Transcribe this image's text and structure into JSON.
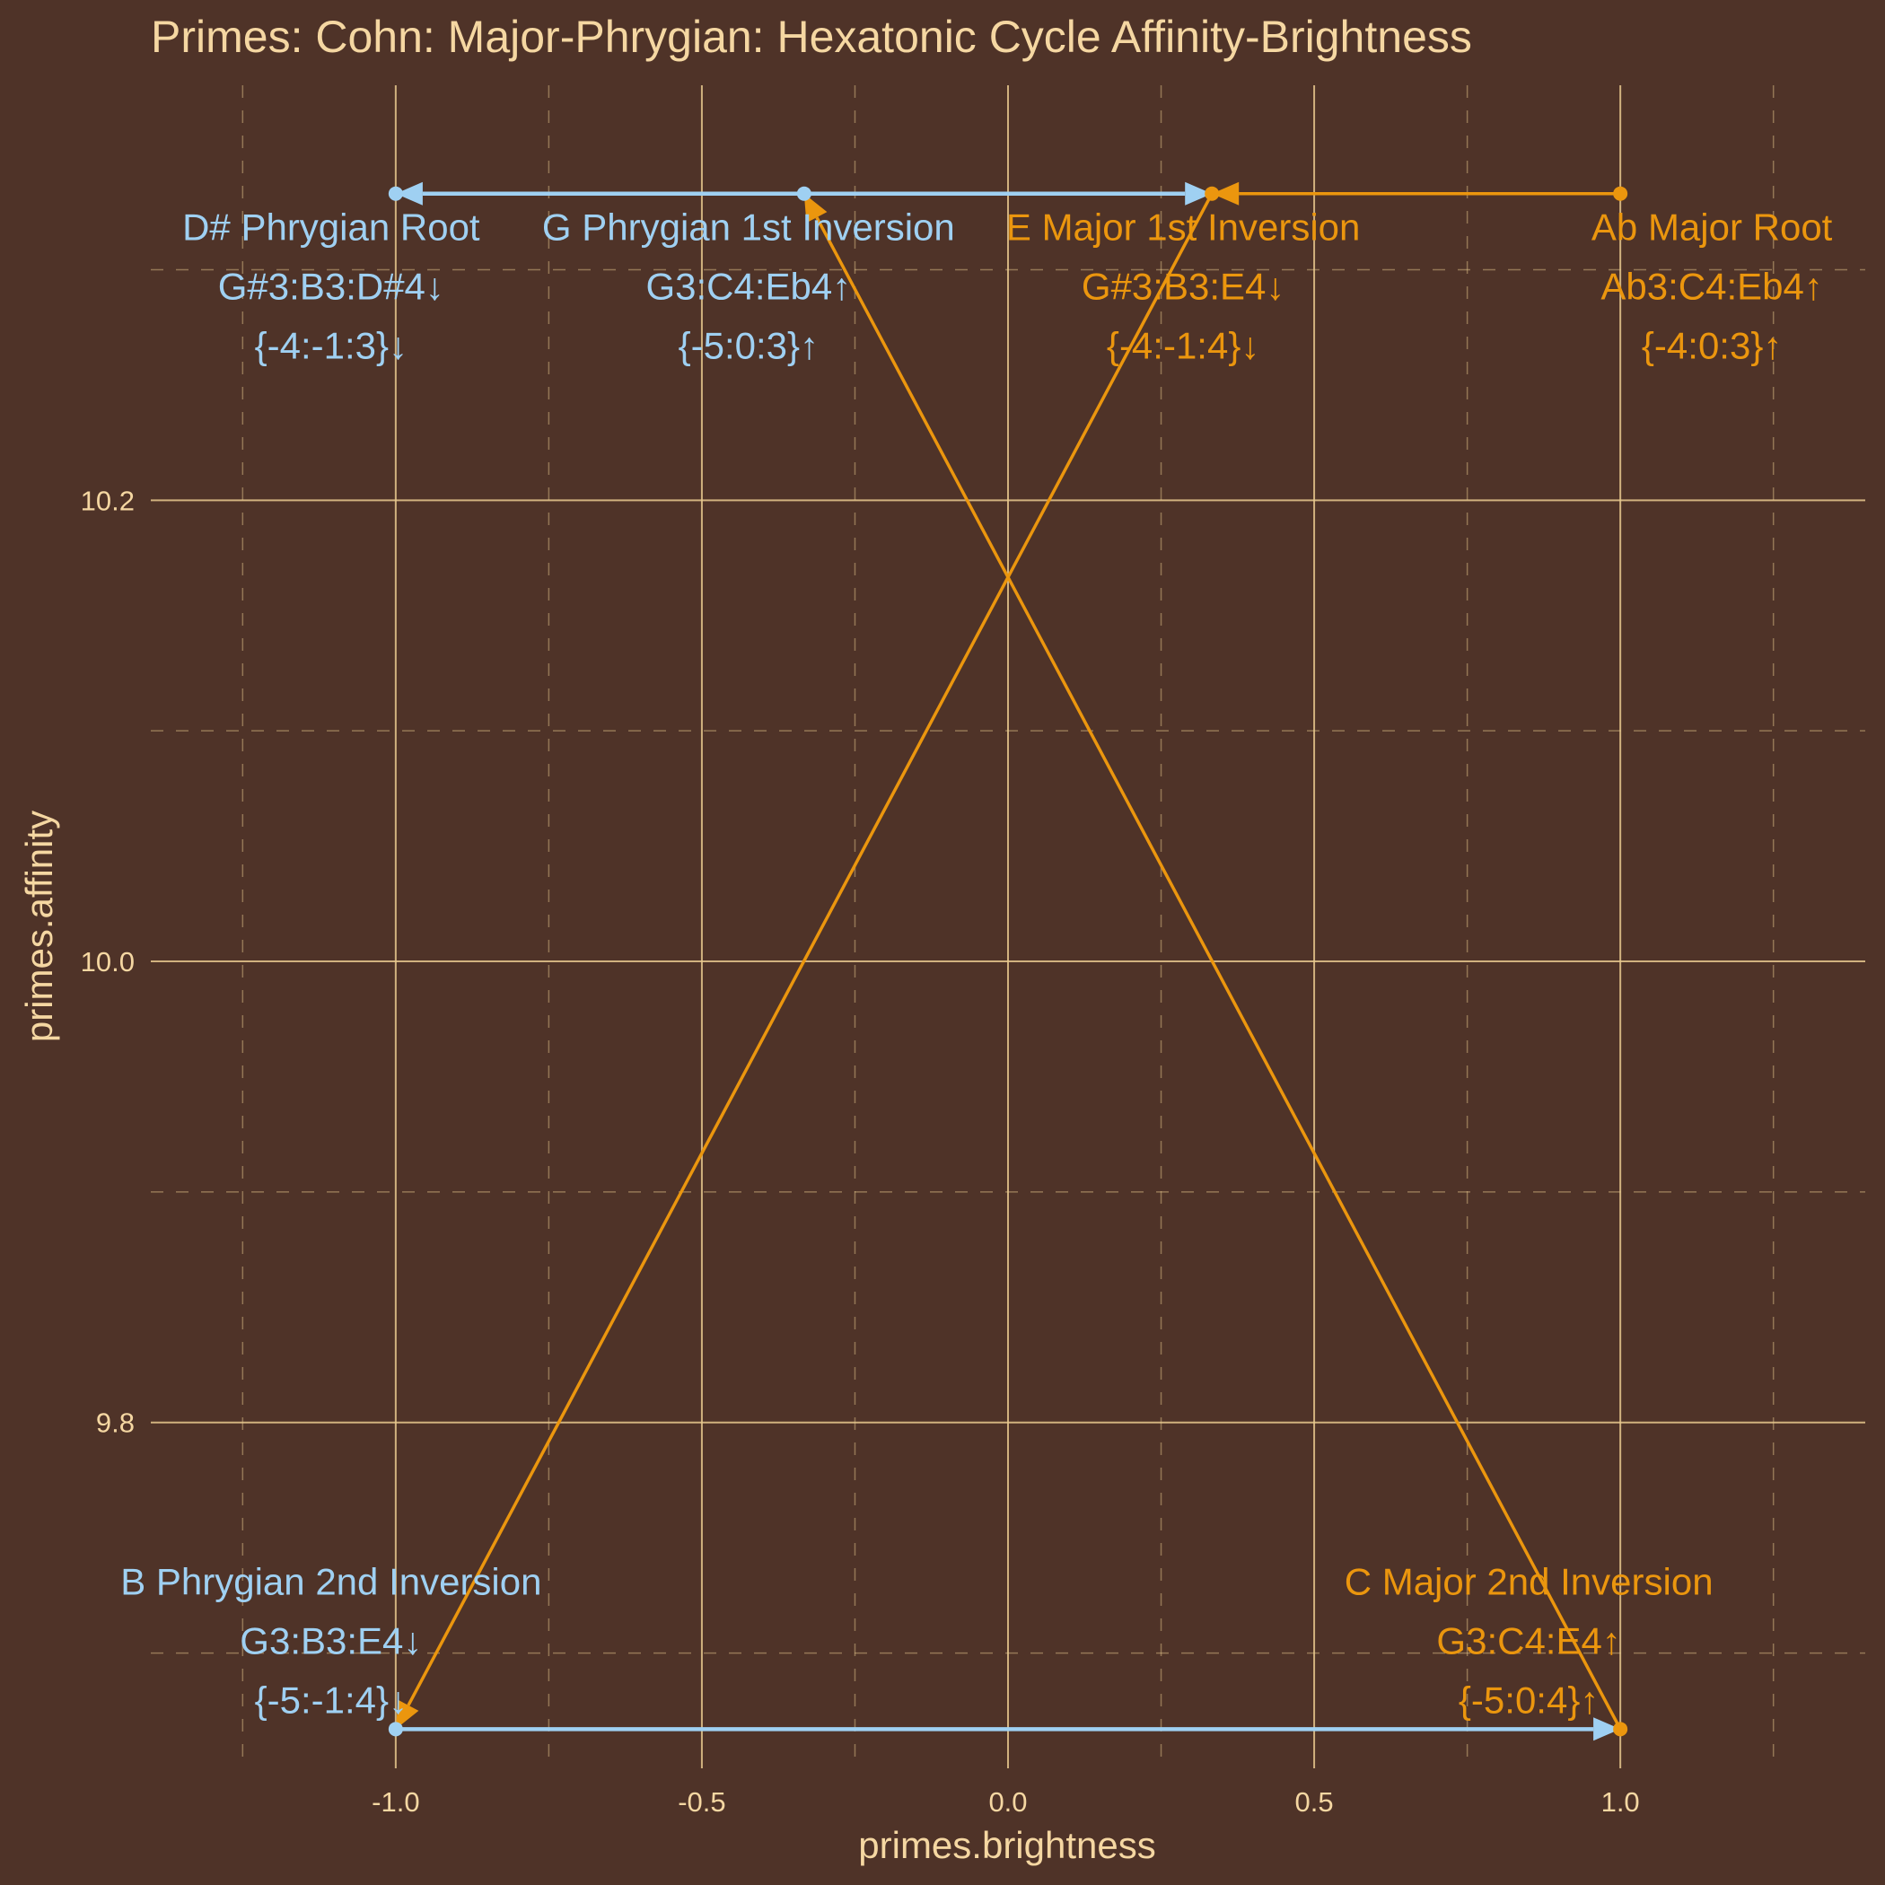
{
  "chart_data": {
    "type": "scatter",
    "title": "Primes: Cohn: Major-Phrygian: Hexatonic Cycle Affinity-Brightness",
    "xlabel": "primes.brightness",
    "ylabel": "primes.affinity",
    "xlim": [
      -1.4,
      1.4
    ],
    "ylim": [
      9.65,
      10.38
    ],
    "x_ticks": [
      -1.0,
      -0.5,
      0.0,
      0.5,
      1.0
    ],
    "x_tick_labels": [
      "-1.0",
      "-0.5",
      "0.0",
      "0.5",
      "1.0"
    ],
    "y_ticks": [
      9.8,
      10.0,
      10.2
    ],
    "y_tick_labels": [
      "9.8",
      "10.0",
      "10.2"
    ],
    "grid": true,
    "colors": {
      "background": "#4f3328",
      "text": "#f5d7a2",
      "grid": "#e8c98e",
      "phrygian": "#9fd0f2",
      "major": "#eb960e"
    },
    "points": [
      {
        "name": "D# Phrygian Root",
        "notes": "G#3:B3:D#4↓",
        "intervals": "{-4:-1:3}↓",
        "x": -1.0,
        "y": 10.333,
        "series": "phrygian",
        "label_pos": "above"
      },
      {
        "name": "G Phrygian 1st Inversion",
        "notes": "G3:C4:Eb4↑",
        "intervals": "{-5:0:3}↑",
        "x": -0.333,
        "y": 10.333,
        "series": "phrygian",
        "label_pos": "above"
      },
      {
        "name": "E Major 1st Inversion",
        "notes": "G#3:B3:E4↓",
        "intervals": "{-4:-1:4}↓",
        "x": 0.333,
        "y": 10.333,
        "series": "major",
        "label_pos": "above"
      },
      {
        "name": "Ab Major Root",
        "notes": "Ab3:C4:Eb4↑",
        "intervals": "{-4:0:3}↑",
        "x": 1.0,
        "y": 10.333,
        "series": "major",
        "label_pos": "above"
      },
      {
        "name": "B Phrygian 2nd Inversion",
        "notes": "G3:B3:E4↓",
        "intervals": "{-5:-1:4}↓",
        "x": -1.0,
        "y": 9.667,
        "series": "phrygian",
        "label_pos": "above"
      },
      {
        "name": "C Major 2nd Inversion",
        "notes": "G3:C4:E4↑",
        "intervals": "{-5:0:4}↑",
        "x": 1.0,
        "y": 9.667,
        "series": "major",
        "label_pos": "above"
      }
    ],
    "arrows": [
      {
        "from": 1,
        "to": 0,
        "series": "phrygian"
      },
      {
        "from": 1,
        "to": 2,
        "series": "phrygian"
      },
      {
        "from": 4,
        "to": 5,
        "series": "phrygian"
      },
      {
        "from": 3,
        "to": 2,
        "series": "major"
      },
      {
        "from": 2,
        "to": 4,
        "series": "major"
      },
      {
        "from": 5,
        "to": 1,
        "series": "major"
      }
    ]
  }
}
